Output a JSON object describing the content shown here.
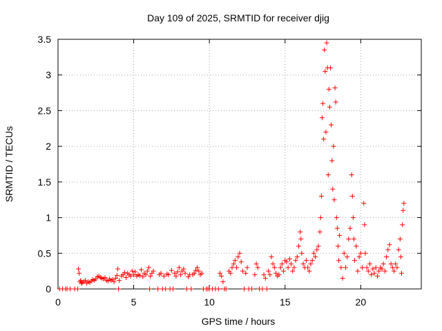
{
  "chart_data": {
    "type": "scatter",
    "title": "Day 109 of 2025, SRMTID for receiver djig",
    "xlabel": "GPS time / hours",
    "ylabel": "SRMTID / TECUs",
    "xlim": [
      0,
      24
    ],
    "ylim": [
      0,
      3.5
    ],
    "xticks": [
      0,
      5,
      10,
      15,
      20
    ],
    "xtick_labels": [
      "0",
      "5",
      "10",
      "15",
      "20"
    ],
    "yticks": [
      0,
      0.5,
      1,
      1.5,
      2,
      2.5,
      3,
      3.5
    ],
    "ytick_labels": [
      "0",
      "0.5",
      "1",
      "1.5",
      "2",
      "2.5",
      "3",
      "3.5"
    ],
    "grid": true,
    "marker": "plus",
    "color": "#ff0000",
    "series": [
      {
        "name": "SRMTID",
        "points": [
          [
            0.1,
            0
          ],
          [
            0.3,
            0
          ],
          [
            0.5,
            0
          ],
          [
            0.6,
            0
          ],
          [
            0.8,
            0
          ],
          [
            1.1,
            0
          ],
          [
            1.3,
            0
          ],
          [
            1.35,
            0.28
          ],
          [
            1.4,
            0.22
          ],
          [
            1.45,
            0.1
          ],
          [
            1.5,
            0.12
          ],
          [
            1.55,
            0.08
          ],
          [
            1.6,
            0.09
          ],
          [
            1.7,
            0.1
          ],
          [
            1.8,
            0.12
          ],
          [
            1.9,
            0.08
          ],
          [
            2.0,
            0.1
          ],
          [
            2.1,
            0.09
          ],
          [
            2.2,
            0.11
          ],
          [
            2.3,
            0.13
          ],
          [
            2.4,
            0.12
          ],
          [
            2.5,
            0.14
          ],
          [
            2.6,
            0.17
          ],
          [
            2.7,
            0.18
          ],
          [
            2.8,
            0.16
          ],
          [
            2.9,
            0.15
          ],
          [
            3.0,
            0.14
          ],
          [
            3.1,
            0.16
          ],
          [
            3.2,
            0.12
          ],
          [
            3.3,
            0.11
          ],
          [
            3.4,
            0.14
          ],
          [
            3.5,
            0.12
          ],
          [
            3.6,
            0.13
          ],
          [
            3.7,
            0.1
          ],
          [
            3.8,
            0.15
          ],
          [
            3.9,
            0.19
          ],
          [
            3.95,
            0.28
          ],
          [
            4.0,
            0.0
          ],
          [
            4.05,
            0.12
          ],
          [
            4.2,
            0.18
          ],
          [
            4.3,
            0.2
          ],
          [
            4.4,
            0.23
          ],
          [
            4.5,
            0.16
          ],
          [
            4.6,
            0.22
          ],
          [
            4.7,
            0.2
          ],
          [
            4.8,
            0.18
          ],
          [
            4.9,
            0.25
          ],
          [
            5.0,
            0.2
          ],
          [
            5.1,
            0.24
          ],
          [
            5.2,
            0.18
          ],
          [
            5.3,
            0.2
          ],
          [
            5.4,
            0.19
          ],
          [
            5.5,
            0.27
          ],
          [
            5.6,
            0.17
          ],
          [
            5.7,
            0.22
          ],
          [
            5.8,
            0.2
          ],
          [
            5.9,
            0.25
          ],
          [
            6.0,
            0.3
          ],
          [
            6.05,
            0.0
          ],
          [
            6.1,
            0.18
          ],
          [
            6.2,
            0.22
          ],
          [
            6.3,
            0.25
          ],
          [
            6.6,
            0.0
          ],
          [
            6.7,
            0.2
          ],
          [
            6.8,
            0.22
          ],
          [
            6.9,
            0.0
          ],
          [
            7.0,
            0.18
          ],
          [
            7.1,
            0.0
          ],
          [
            7.2,
            0.21
          ],
          [
            7.3,
            0.2
          ],
          [
            7.4,
            0.0
          ],
          [
            7.5,
            0.26
          ],
          [
            7.6,
            0.0
          ],
          [
            7.7,
            0.22
          ],
          [
            7.8,
            0.18
          ],
          [
            7.9,
            0.24
          ],
          [
            8.0,
            0.3
          ],
          [
            8.1,
            0.2
          ],
          [
            8.2,
            0.25
          ],
          [
            8.3,
            0.28
          ],
          [
            8.4,
            0.22
          ],
          [
            8.5,
            0.0
          ],
          [
            8.6,
            0.17
          ],
          [
            8.7,
            0.2
          ],
          [
            8.8,
            0.0
          ],
          [
            8.9,
            0.2
          ],
          [
            9.0,
            0.22
          ],
          [
            9.1,
            0.26
          ],
          [
            9.2,
            0.3
          ],
          [
            9.3,
            0.25
          ],
          [
            9.4,
            0.2
          ],
          [
            9.5,
            0.22
          ],
          [
            9.6,
            0.0
          ],
          [
            9.8,
            0.0
          ],
          [
            9.9,
            0.0
          ],
          [
            10.0,
            0.0
          ],
          [
            10.2,
            0.0
          ],
          [
            10.4,
            0.0
          ],
          [
            10.6,
            0.0
          ],
          [
            10.7,
            0.22
          ],
          [
            10.8,
            0.18
          ],
          [
            10.9,
            0.1
          ],
          [
            11.0,
            0.0
          ],
          [
            11.1,
            0.0
          ],
          [
            11.3,
            0.25
          ],
          [
            11.4,
            0.22
          ],
          [
            11.5,
            0.3
          ],
          [
            11.6,
            0.35
          ],
          [
            11.7,
            0.4
          ],
          [
            11.8,
            0.3
          ],
          [
            11.9,
            0.45
          ],
          [
            12.0,
            0.5
          ],
          [
            12.1,
            0.38
          ],
          [
            12.2,
            0.25
          ],
          [
            12.3,
            0.0
          ],
          [
            12.4,
            0.22
          ],
          [
            12.5,
            0.3
          ],
          [
            12.6,
            0.0
          ],
          [
            12.8,
            0.0
          ],
          [
            13.0,
            0.2
          ],
          [
            13.1,
            0.35
          ],
          [
            13.2,
            0.3
          ],
          [
            13.3,
            0.0
          ],
          [
            13.5,
            0.0
          ],
          [
            13.6,
            0.2
          ],
          [
            13.7,
            0.15
          ],
          [
            13.8,
            0.0
          ],
          [
            13.9,
            0.25
          ],
          [
            14.0,
            0.2
          ],
          [
            14.1,
            0.45
          ],
          [
            14.2,
            0.35
          ],
          [
            14.3,
            0.3
          ],
          [
            14.4,
            0.22
          ],
          [
            14.5,
            0.18
          ],
          [
            14.6,
            0.2
          ],
          [
            14.7,
            0.3
          ],
          [
            14.8,
            0.35
          ],
          [
            14.9,
            0.25
          ],
          [
            15.0,
            0.4
          ],
          [
            15.1,
            0.38
          ],
          [
            15.2,
            0.3
          ],
          [
            15.3,
            0.42
          ],
          [
            15.4,
            0.35
          ],
          [
            15.5,
            0.25
          ],
          [
            15.6,
            0.3
          ],
          [
            15.7,
            0.4
          ],
          [
            15.8,
            0.45
          ],
          [
            15.9,
            0.6
          ],
          [
            16.0,
            0.8
          ],
          [
            16.05,
            0.7
          ],
          [
            16.1,
            0.5
          ],
          [
            16.2,
            0.35
          ],
          [
            16.3,
            0.3
          ],
          [
            16.4,
            0.4
          ],
          [
            16.5,
            0.3
          ],
          [
            16.6,
            0.25
          ],
          [
            16.7,
            0.35
          ],
          [
            16.8,
            0.4
          ],
          [
            16.9,
            0.5
          ],
          [
            17.0,
            0.45
          ],
          [
            17.1,
            0.55
          ],
          [
            17.2,
            0.6
          ],
          [
            17.3,
            0.8
          ],
          [
            17.35,
            1.0
          ],
          [
            17.4,
            1.3
          ],
          [
            17.45,
            2.4
          ],
          [
            17.5,
            2.6
          ],
          [
            17.55,
            2.1
          ],
          [
            17.6,
            3.35
          ],
          [
            17.65,
            3.05
          ],
          [
            17.7,
            2.2
          ],
          [
            17.75,
            3.45
          ],
          [
            17.8,
            3.1
          ],
          [
            17.85,
            1.6
          ],
          [
            17.9,
            2.8
          ],
          [
            17.95,
            2.55
          ],
          [
            18.0,
            3.1
          ],
          [
            18.05,
            2.3
          ],
          [
            18.1,
            1.8
          ],
          [
            18.15,
            1.4
          ],
          [
            18.2,
            2.0
          ],
          [
            18.25,
            1.25
          ],
          [
            18.3,
            2.82
          ],
          [
            18.35,
            2.62
          ],
          [
            18.4,
            1.0
          ],
          [
            18.45,
            0.85
          ],
          [
            18.5,
            0.6
          ],
          [
            18.55,
            0.4
          ],
          [
            18.6,
            0.75
          ],
          [
            18.7,
            0.3
          ],
          [
            18.8,
            0.15
          ],
          [
            18.9,
            0.5
          ],
          [
            19.0,
            0.3
          ],
          [
            19.1,
            0.45
          ],
          [
            19.2,
            0.7
          ],
          [
            19.3,
            0.85
          ],
          [
            19.4,
            1.6
          ],
          [
            19.45,
            1.3
          ],
          [
            19.5,
            1.0
          ],
          [
            19.55,
            0.7
          ],
          [
            19.6,
            0.4
          ],
          [
            19.7,
            0.6
          ],
          [
            19.8,
            0.25
          ],
          [
            19.9,
            0.45
          ],
          [
            20.0,
            0.5
          ],
          [
            20.1,
            0.3
          ],
          [
            20.2,
            1.2
          ],
          [
            20.25,
            0.9
          ],
          [
            20.3,
            0.5
          ],
          [
            20.4,
            0.3
          ],
          [
            20.5,
            0.25
          ],
          [
            20.6,
            0.35
          ],
          [
            20.7,
            0.2
          ],
          [
            20.8,
            0.28
          ],
          [
            20.9,
            0.22
          ],
          [
            21.0,
            0.3
          ],
          [
            21.1,
            0.18
          ],
          [
            21.2,
            0.25
          ],
          [
            21.3,
            0.3
          ],
          [
            21.4,
            0.28
          ],
          [
            21.5,
            0.35
          ],
          [
            21.6,
            0.25
          ],
          [
            21.7,
            0.45
          ],
          [
            21.8,
            0.55
          ],
          [
            21.9,
            0.62
          ],
          [
            22.0,
            0.35
          ],
          [
            22.1,
            0.3
          ],
          [
            22.2,
            0.25
          ],
          [
            22.3,
            0.35
          ],
          [
            22.4,
            0.3
          ],
          [
            22.5,
            0.55
          ],
          [
            22.6,
            0.7
          ],
          [
            22.65,
            0.45
          ],
          [
            22.7,
            0.22
          ],
          [
            22.75,
            0.9
          ],
          [
            22.8,
            1.1
          ],
          [
            22.85,
            1.2
          ]
        ]
      }
    ]
  }
}
